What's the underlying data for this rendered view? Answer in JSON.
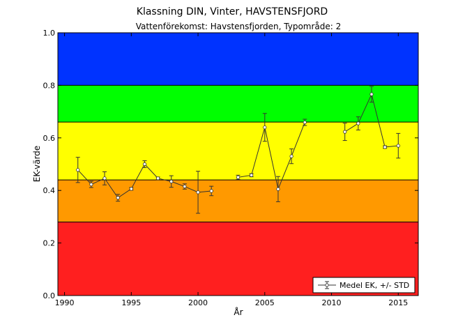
{
  "chart_data": {
    "type": "line",
    "title": "Klassning DIN, Vinter, HAVSTENSFJORD",
    "subtitle": "Vattenförekomst: Havstensfjorden, Typområde: 2",
    "xlabel": "År",
    "ylabel": "EK-värde",
    "xlim": [
      1989.5,
      2016.5
    ],
    "ylim": [
      0.0,
      1.0
    ],
    "x_ticks": [
      1990,
      1995,
      2000,
      2005,
      2010,
      2015
    ],
    "y_ticks": [
      0.0,
      0.2,
      0.4,
      0.6,
      0.8,
      1.0
    ],
    "x_tick_labels": [
      "1990",
      "1995",
      "2000",
      "2005",
      "2010",
      "2015"
    ],
    "y_tick_labels": [
      "0.0",
      "0.2",
      "0.4",
      "0.6",
      "0.8",
      "1.0"
    ],
    "grid": false,
    "legend_position": "bottom-right",
    "bands": [
      {
        "from": 0.0,
        "to": 0.28,
        "color": "#ff1f1f"
      },
      {
        "from": 0.28,
        "to": 0.44,
        "color": "#ff9900"
      },
      {
        "from": 0.44,
        "to": 0.66,
        "color": "#ffff00"
      },
      {
        "from": 0.66,
        "to": 0.8,
        "color": "#00ff00"
      },
      {
        "from": 0.8,
        "to": 1.0,
        "color": "#0033ff"
      }
    ],
    "series": [
      {
        "name": "Medel EK, +/- STD",
        "color": "#333333",
        "segments": [
          {
            "x": [
              1991,
              1992,
              1993,
              1994,
              1995,
              1996,
              1997,
              1998,
              1999,
              2000,
              2001
            ],
            "y": [
              0.478,
              0.423,
              0.446,
              0.372,
              0.406,
              0.5,
              0.446,
              0.434,
              0.415,
              0.393,
              0.398
            ],
            "std": [
              0.048,
              0.012,
              0.025,
              0.013,
              0.005,
              0.013,
              0.005,
              0.022,
              0.01,
              0.08,
              0.018
            ]
          },
          {
            "x": [
              2003,
              2004,
              2005,
              2006,
              2007,
              2008
            ],
            "y": [
              0.45,
              0.458,
              0.64,
              0.405,
              0.53,
              0.659
            ],
            "std": [
              0.008,
              0.006,
              0.053,
              0.048,
              0.028,
              0.012
            ]
          },
          {
            "x": [
              2011,
              2012,
              2013,
              2014,
              2015
            ],
            "y": [
              0.623,
              0.655,
              0.766,
              0.565,
              0.57
            ],
            "std": [
              0.033,
              0.025,
              0.03,
              0.005,
              0.047
            ]
          }
        ]
      }
    ]
  }
}
